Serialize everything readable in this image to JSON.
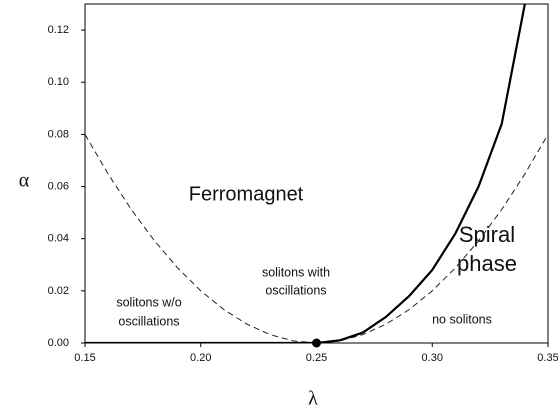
{
  "chart_data": {
    "type": "line",
    "xlabel": "λ",
    "ylabel": "α",
    "x": [
      0.15,
      0.16,
      0.17,
      0.18,
      0.19,
      0.2,
      0.21,
      0.22,
      0.23,
      0.24,
      0.25,
      0.26,
      0.27,
      0.28,
      0.29,
      0.3,
      0.31,
      0.32,
      0.33,
      0.34,
      0.35
    ],
    "series": [
      {
        "name": "dashed",
        "color": "#222222",
        "dash": true,
        "values": [
          0.08,
          0.0648,
          0.0512,
          0.0392,
          0.0288,
          0.02,
          0.0128,
          0.0072,
          0.0032,
          0.0008,
          0,
          0.0008,
          0.0032,
          0.0072,
          0.0128,
          0.02,
          0.0288,
          0.0392,
          0.0512,
          0.0648,
          0.08
        ]
      },
      {
        "name": "solid",
        "color": "#000000",
        "dash": false,
        "values": [
          0,
          0,
          0,
          0,
          0,
          0,
          0,
          0,
          0,
          0,
          0,
          0.001,
          0.004,
          0.01,
          0.018,
          0.028,
          0.042,
          0.06,
          0.084,
          0.13,
          null
        ]
      }
    ],
    "points": [
      {
        "x": 0.25,
        "y": 0
      }
    ],
    "xlim": [
      0.15,
      0.35
    ],
    "ylim": [
      0,
      0.13
    ],
    "xticks": [
      {
        "value": 0.15,
        "label": "0.15"
      },
      {
        "value": 0.2,
        "label": "0.20"
      },
      {
        "value": 0.25,
        "label": "0.25"
      },
      {
        "value": 0.3,
        "label": "0.30"
      },
      {
        "value": 0.35,
        "label": "0.35"
      }
    ],
    "yticks": [
      {
        "value": 0,
        "label": "0.00"
      },
      {
        "value": 0.02,
        "label": "0.02"
      },
      {
        "value": 0.04,
        "label": "0.04"
      },
      {
        "value": 0.06,
        "label": "0.06"
      },
      {
        "value": 0.08,
        "label": "0.08"
      },
      {
        "value": 0.1,
        "label": "0.10"
      },
      {
        "value": 0.12,
        "label": "0.12"
      }
    ],
    "annotations": [
      [
        "Ferromagnet"
      ],
      [
        "Spiral",
        "phase"
      ],
      [
        "solitons w/o",
        "oscillations"
      ],
      [
        "solitons with",
        "oscillations"
      ],
      [
        "no solitons"
      ]
    ]
  }
}
